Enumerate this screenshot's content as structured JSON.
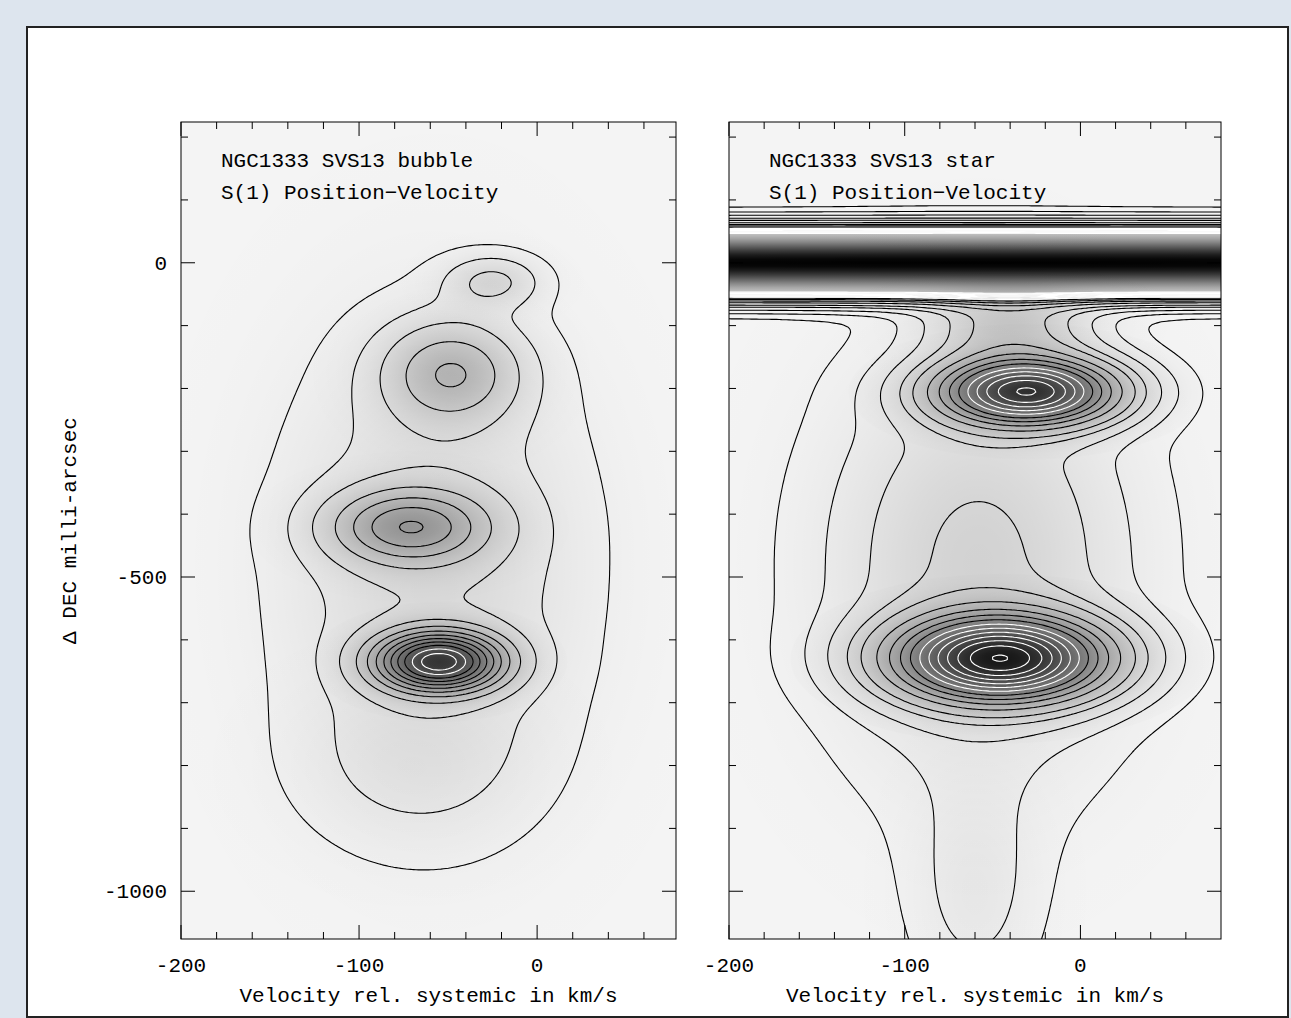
{
  "chart_data": [
    {
      "type": "contour",
      "title": "NGC1333 SVS13 bubble",
      "subtitle": "S(1) Position−Velocity",
      "x_label": "Velocity rel. systemic in km/s",
      "y_label": "Δ DEC milli-arcsec",
      "xlim": [
        -200,
        78
      ],
      "ylim": [
        -1076,
        224
      ],
      "xticks": [
        -200,
        -100,
        0
      ],
      "yticks": [
        0,
        -500,
        -1000
      ],
      "xticks_minor": [
        -180,
        -160,
        -140,
        -120,
        -80,
        -60,
        -40,
        -20,
        20,
        40,
        60
      ],
      "yticks_minor": [
        200,
        100,
        -100,
        -200,
        -300,
        -400,
        -600,
        -700,
        -800,
        -900
      ],
      "tick_labels": true,
      "intensity_range": [
        0,
        1.3
      ],
      "components": [
        {
          "velocity": -55,
          "dec": -635,
          "sigma_velocity": 24,
          "sigma_dec": 32,
          "peak": 1.0
        },
        {
          "velocity": -72,
          "dec": -420,
          "sigma_velocity": 30,
          "sigma_dec": 40,
          "peak": 0.42
        },
        {
          "velocity": -48,
          "dec": -175,
          "sigma_velocity": 26,
          "sigma_dec": 55,
          "peak": 0.3
        },
        {
          "velocity": -25,
          "dec": -30,
          "sigma_velocity": 18,
          "sigma_dec": 28,
          "peak": 0.15
        },
        {
          "velocity": -58,
          "dec": -480,
          "sigma_velocity": 55,
          "sigma_dec": 240,
          "peak": 0.15
        },
        {
          "velocity": -70,
          "dec": -800,
          "sigma_velocity": 45,
          "sigma_dec": 90,
          "peak": 0.06
        }
      ],
      "contour_levels": [
        0.03,
        0.08,
        0.15,
        0.25,
        0.35,
        0.45,
        0.55,
        0.65,
        0.75,
        0.85,
        0.95,
        1.05
      ],
      "colors": [
        "#000000",
        "#000000",
        "#000000",
        "#000000",
        "#000000",
        "#000000",
        "#000000",
        "#000000",
        "#000000",
        "#000000",
        "#ffffff",
        "#ffffff"
      ]
    },
    {
      "type": "contour",
      "title": "NGC1333 SVS13 star",
      "subtitle": "S(1) Position−Velocity",
      "x_label": "Velocity rel. systemic in km/s",
      "xlim": [
        -200,
        80
      ],
      "ylim": [
        -1076,
        224
      ],
      "xticks": [
        -200,
        -100,
        0
      ],
      "yticks": [
        0,
        -500,
        -1000
      ],
      "xticks_minor": [
        -180,
        -160,
        -140,
        -120,
        -80,
        -60,
        -40,
        -20,
        20,
        40,
        60
      ],
      "yticks_minor": [
        200,
        100,
        -100,
        -200,
        -300,
        -400,
        -600,
        -700,
        -800,
        -900
      ],
      "tick_labels": "x",
      "intensity_range": [
        0,
        2.0
      ],
      "components": [
        {
          "velocity": -60,
          "dec": 0,
          "sigma_velocity": 1000,
          "sigma_dec": 26,
          "peak": 10
        },
        {
          "velocity": -30,
          "dec": -205,
          "sigma_velocity": 34,
          "sigma_dec": 36,
          "peak": 1.6
        },
        {
          "velocity": -45,
          "dec": -630,
          "sigma_velocity": 40,
          "sigma_dec": 45,
          "peak": 1.8
        },
        {
          "velocity": -40,
          "dec": -95,
          "sigma_velocity": 30,
          "sigma_dec": 45,
          "peak": 0.35
        },
        {
          "velocity": -58,
          "dec": -480,
          "sigma_velocity": 55,
          "sigma_dec": 210,
          "peak": 0.28
        },
        {
          "velocity": -60,
          "dec": -1000,
          "sigma_velocity": 25,
          "sigma_dec": 120,
          "peak": 0.1
        }
      ],
      "contour_levels": [
        0.03,
        0.08,
        0.15,
        0.25,
        0.35,
        0.5,
        0.65,
        0.8,
        0.95,
        1.1,
        1.25,
        1.4,
        1.55,
        1.7,
        1.85,
        2.0
      ],
      "colors": [
        "#000000",
        "#000000",
        "#000000",
        "#000000",
        "#000000",
        "#000000",
        "#000000",
        "#000000",
        "#000000",
        "#ffffff",
        "#ffffff",
        "#ffffff",
        "#ffffff",
        "#ffffff",
        "#ffffff",
        "#ffffff"
      ]
    }
  ]
}
